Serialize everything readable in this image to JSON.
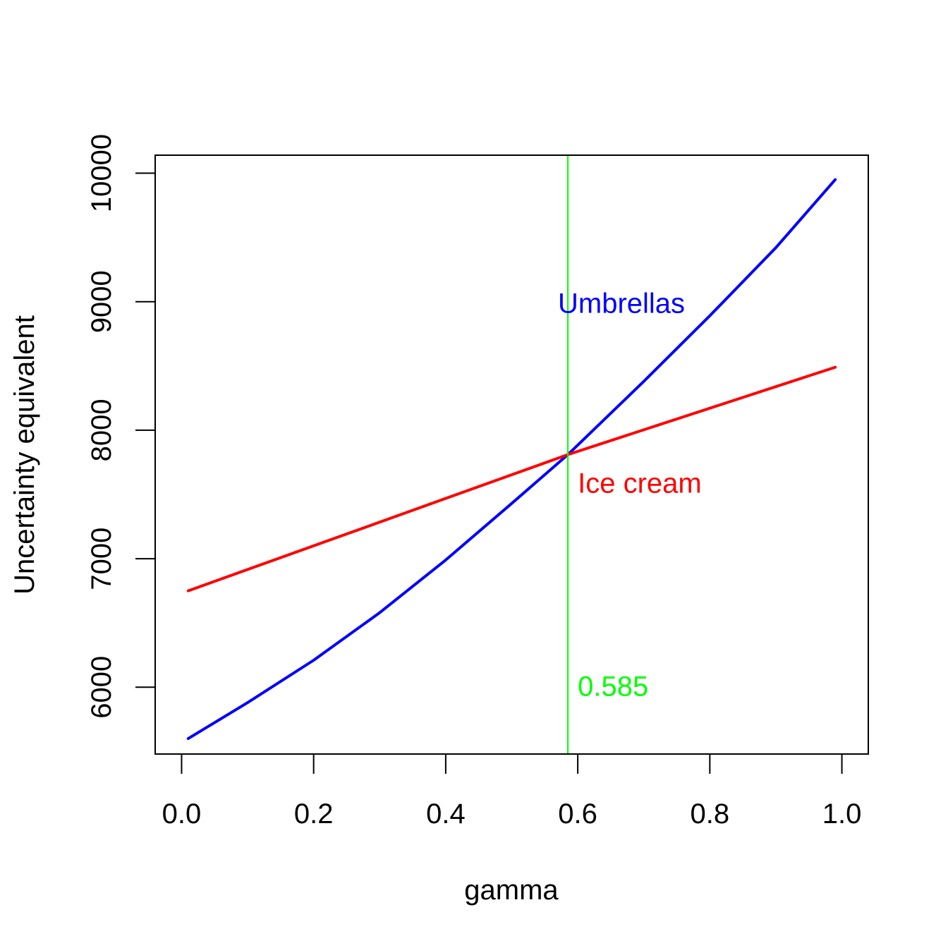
{
  "chart_data": {
    "type": "line",
    "title": "",
    "xlabel": "gamma",
    "ylabel": "Uncertainty equivalent",
    "xlim": [
      -0.04,
      1.04
    ],
    "ylim": [
      5480,
      10140
    ],
    "x_ticks": [
      0.0,
      0.2,
      0.4,
      0.6,
      0.8,
      1.0
    ],
    "x_tick_labels": [
      "0.0",
      "0.2",
      "0.4",
      "0.6",
      "0.8",
      "1.0"
    ],
    "y_ticks": [
      6000,
      7000,
      8000,
      9000,
      10000
    ],
    "y_tick_labels": [
      "6000",
      "7000",
      "8000",
      "9000",
      "10000"
    ],
    "grid": false,
    "legend": "none",
    "series": [
      {
        "name": "Umbrellas",
        "color": "#0000ff",
        "x": [
          0.01,
          0.1,
          0.2,
          0.3,
          0.4,
          0.5,
          0.585,
          0.7,
          0.8,
          0.9,
          0.99
        ],
        "y": [
          5600,
          5880,
          6210,
          6580,
          6990,
          7430,
          7810,
          8380,
          8890,
          9420,
          9950
        ]
      },
      {
        "name": "Ice cream",
        "color": "#ff0000",
        "x": [
          0.01,
          0.585,
          0.99
        ],
        "y": [
          6750,
          7810,
          8490
        ]
      }
    ],
    "vline": {
      "x": 0.585,
      "color": "#00ff00"
    },
    "annotations": [
      {
        "text": "Umbrellas",
        "x": 0.57,
        "y": 8990,
        "anchor": "start",
        "color": "#0000ff"
      },
      {
        "text": "Ice cream",
        "x": 0.6,
        "y": 7590,
        "anchor": "start",
        "color": "#ff0000"
      },
      {
        "text": "0.585",
        "x": 0.6,
        "y": 6010,
        "anchor": "start",
        "color": "#00ff00"
      }
    ]
  }
}
